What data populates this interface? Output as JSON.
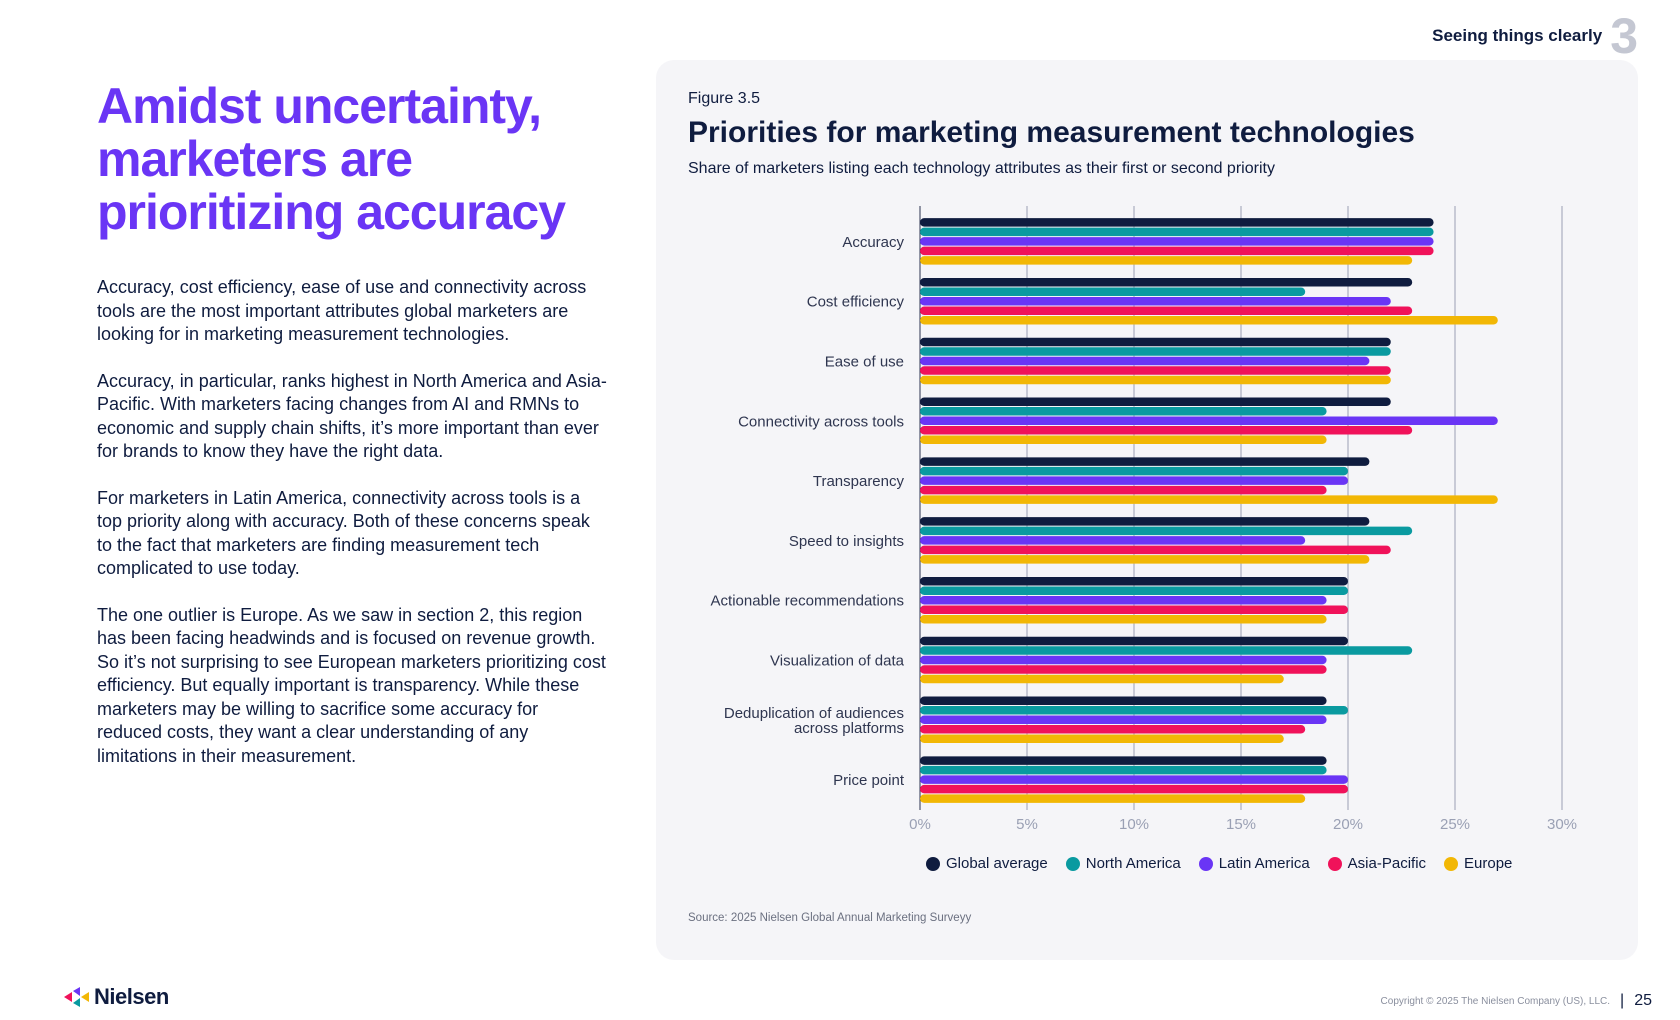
{
  "header": {
    "section_title": "Seeing things clearly",
    "section_number": "3"
  },
  "left": {
    "headline": "Amidst uncertainty, marketers are prioritizing accuracy",
    "paragraphs": [
      "Accuracy, cost efficiency, ease of use and connectivity across tools are the most important attributes global marketers are looking for in marketing measurement technologies.",
      "Accuracy, in particular, ranks highest in North America and Asia-Pacific. With marketers facing changes from AI and RMNs to economic and supply chain shifts, it’s more important than ever for brands to know they have the right data.",
      "For marketers in Latin America, connectivity across tools is a top priority along with accuracy. Both of these concerns speak to the fact that marketers are finding measurement tech complicated to use today.",
      "The one outlier is Europe. As we saw in section 2, this region has been facing headwinds and is focused on revenue growth. So it’s not surprising to see European marketers prioritizing cost efficiency. But equally important is transparency. While these marketers may be willing to sacrifice some accuracy for reduced costs, they want a clear understanding of any limitations in their measurement."
    ]
  },
  "figure": {
    "number": "Figure 3.5",
    "title": "Priorities for marketing measurement technologies",
    "subtitle": "Share of marketers listing each technology attributes as their first or second priority",
    "source": "Source: 2025 Nielsen Global Annual Marketing Surveyy"
  },
  "chart_data": {
    "type": "bar",
    "orientation": "horizontal",
    "title": "Priorities for marketing measurement technologies",
    "subtitle": "Share of marketers listing each technology attributes as their first or second priority",
    "xlabel": "",
    "ylabel": "",
    "xlim": [
      0,
      30
    ],
    "x_ticks": [
      "0%",
      "5%",
      "10%",
      "15%",
      "20%",
      "25%",
      "30%"
    ],
    "x_tick_values": [
      0,
      5,
      10,
      15,
      20,
      25,
      30
    ],
    "grid": true,
    "legend_position": "bottom-center",
    "categories": [
      "Accuracy",
      "Cost efficiency",
      "Ease of use",
      "Connectivity across tools",
      "Transparency",
      "Speed to insights",
      "Actionable recommendations",
      "Visualization of data",
      "Deduplication of audiences across platforms",
      "Price point"
    ],
    "category_lines": [
      [
        "Accuracy"
      ],
      [
        "Cost efficiency"
      ],
      [
        "Ease of use"
      ],
      [
        "Connectivity across tools"
      ],
      [
        "Transparency"
      ],
      [
        "Speed to insights"
      ],
      [
        "Actionable recommendations"
      ],
      [
        "Visualization of data"
      ],
      [
        "Deduplication of audiences",
        "across platforms"
      ],
      [
        "Price point"
      ]
    ],
    "series": [
      {
        "name": "Global average",
        "color": "#0f1c3f",
        "values": [
          24,
          23,
          22,
          22,
          21,
          21,
          20,
          20,
          19,
          19
        ]
      },
      {
        "name": "North America",
        "color": "#0a9aa0",
        "values": [
          24,
          18,
          22,
          19,
          20,
          23,
          20,
          23,
          20,
          19
        ]
      },
      {
        "name": "Latin America",
        "color": "#6a35f5",
        "values": [
          24,
          22,
          21,
          27,
          20,
          18,
          19,
          19,
          19,
          20
        ]
      },
      {
        "name": "Asia-Pacific",
        "color": "#f0125a",
        "values": [
          24,
          23,
          22,
          23,
          19,
          22,
          20,
          19,
          18,
          20
        ]
      },
      {
        "name": "Europe",
        "color": "#f2b705",
        "values": [
          23,
          27,
          22,
          19,
          27,
          21,
          19,
          17,
          17,
          18
        ]
      }
    ]
  },
  "footer": {
    "brand": "Nielsen",
    "copyright": "Copyright © 2025 The Nielsen Company (US), LLC.",
    "separator": "|",
    "page_number": "25"
  }
}
